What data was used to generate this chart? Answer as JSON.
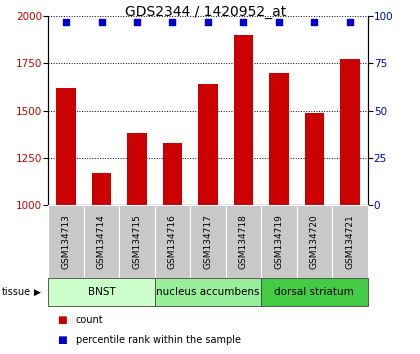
{
  "title": "GDS2344 / 1420952_at",
  "samples": [
    "GSM134713",
    "GSM134714",
    "GSM134715",
    "GSM134716",
    "GSM134717",
    "GSM134718",
    "GSM134719",
    "GSM134720",
    "GSM134721"
  ],
  "counts": [
    1620,
    1170,
    1380,
    1330,
    1640,
    1900,
    1700,
    1490,
    1775
  ],
  "percentile_ranks": [
    97,
    97,
    97,
    97,
    97,
    97,
    97,
    97,
    97
  ],
  "ylim_left": [
    1000,
    2000
  ],
  "ylim_right": [
    0,
    100
  ],
  "yticks_left": [
    1000,
    1250,
    1500,
    1750,
    2000
  ],
  "yticks_right": [
    0,
    25,
    50,
    75,
    100
  ],
  "bar_color": "#cc0000",
  "dot_color": "#0000cc",
  "grid_color": "#000000",
  "tissue_groups": [
    {
      "label": "BNST",
      "start": 0,
      "end": 2,
      "color": "#ccffcc"
    },
    {
      "label": "nucleus accumbens",
      "start": 3,
      "end": 5,
      "color": "#99ee99"
    },
    {
      "label": "dorsal striatum",
      "start": 6,
      "end": 8,
      "color": "#44cc44"
    }
  ],
  "tissue_label": "tissue",
  "legend_count_label": "count",
  "legend_pct_label": "percentile rank within the sample",
  "background_color": "#ffffff",
  "xlabel_area_color": "#c8c8c8",
  "bar_width": 0.55,
  "title_fontsize": 10,
  "tick_fontsize": 7.5,
  "sample_fontsize": 6.5,
  "tissue_fontsize": 7.5,
  "legend_fontsize": 7
}
